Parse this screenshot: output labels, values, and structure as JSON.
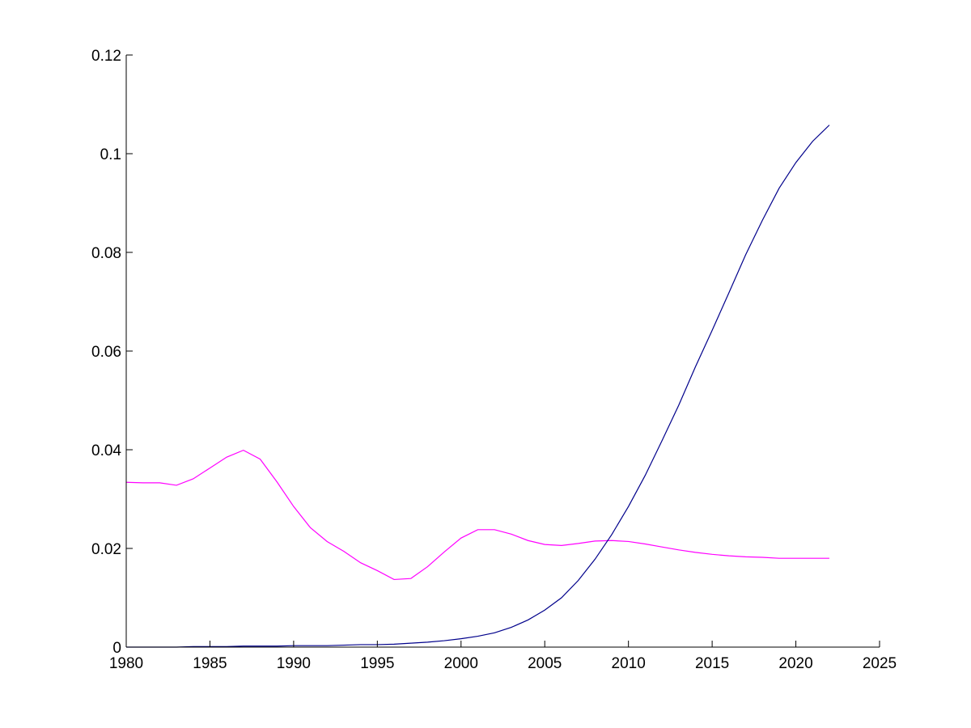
{
  "chart_data": {
    "type": "line",
    "title": "",
    "xlabel": "",
    "ylabel": "",
    "xlim": [
      1980,
      2025
    ],
    "ylim": [
      0,
      0.12
    ],
    "grid": false,
    "legend": "none",
    "x_ticks": [
      "1980",
      "1985",
      "1990",
      "1995",
      "2000",
      "2005",
      "2010",
      "2015",
      "2020",
      "2025"
    ],
    "y_ticks": [
      "0",
      "0.02",
      "0.04",
      "0.06",
      "0.08",
      "0.1",
      "0.12"
    ],
    "axis_color": "#000000",
    "series": [
      {
        "color": "#ff00ff",
        "x": [
          1980,
          1981,
          1982,
          1983,
          1984,
          1985,
          1986,
          1987,
          1988,
          1989,
          1990,
          1991,
          1992,
          1993,
          1994,
          1995,
          1996,
          1997,
          1998,
          1999,
          2000,
          2001,
          2002,
          2003,
          2004,
          2005,
          2006,
          2007,
          2008,
          2009,
          2010,
          2011,
          2012,
          2013,
          2014,
          2015,
          2016,
          2017,
          2018,
          2019,
          2020,
          2021,
          2022
        ],
        "y": [
          0.0334,
          0.0333,
          0.0333,
          0.0328,
          0.0341,
          0.0363,
          0.0385,
          0.0399,
          0.0381,
          0.0335,
          0.0285,
          0.0242,
          0.0214,
          0.0194,
          0.0171,
          0.0155,
          0.0137,
          0.0139,
          0.0163,
          0.0193,
          0.0221,
          0.0238,
          0.0238,
          0.0229,
          0.0216,
          0.0208,
          0.0206,
          0.021,
          0.0215,
          0.0216,
          0.0214,
          0.0209,
          0.0203,
          0.0197,
          0.0192,
          0.0188,
          0.0185,
          0.0183,
          0.0182,
          0.018,
          0.018,
          0.018,
          0.018
        ]
      },
      {
        "color": "#00008b",
        "x": [
          1980,
          1981,
          1982,
          1983,
          1984,
          1985,
          1986,
          1987,
          1988,
          1989,
          1990,
          1991,
          1992,
          1993,
          1994,
          1995,
          1996,
          1997,
          1998,
          1999,
          2000,
          2001,
          2002,
          2003,
          2004,
          2005,
          2006,
          2007,
          2008,
          2009,
          2010,
          2011,
          2012,
          2013,
          2014,
          2015,
          2016,
          2017,
          2018,
          2019,
          2020,
          2021,
          2022
        ],
        "y": [
          0.0,
          0.0,
          0.0,
          0.0,
          0.0001,
          0.0001,
          0.0001,
          0.0002,
          0.0002,
          0.0002,
          0.0003,
          0.0003,
          0.0003,
          0.0004,
          0.0005,
          0.0005,
          0.0006,
          0.0008,
          0.001,
          0.0013,
          0.0017,
          0.0022,
          0.0029,
          0.004,
          0.0055,
          0.0075,
          0.01,
          0.0135,
          0.0178,
          0.0228,
          0.0285,
          0.0348,
          0.0418,
          0.049,
          0.0568,
          0.0642,
          0.0718,
          0.0795,
          0.0865,
          0.093,
          0.0982,
          0.1025,
          0.1058
        ]
      }
    ]
  }
}
